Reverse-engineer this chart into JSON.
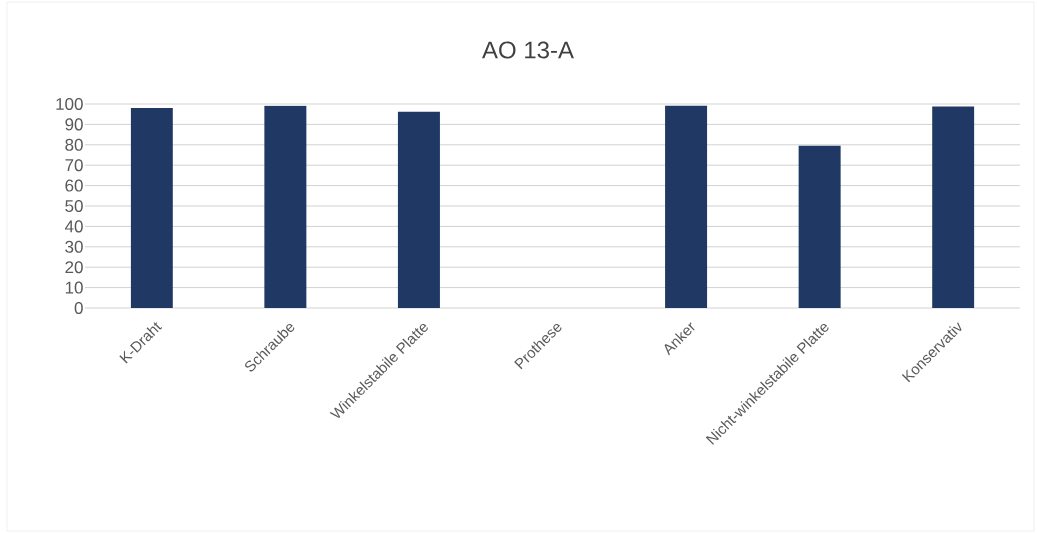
{
  "chart_data": {
    "type": "bar",
    "title": "AO 13-A",
    "categories": [
      "K-Draht",
      "Schraube",
      "Winkelstabile Platte",
      "Prothese",
      "Anker",
      "Nicht-winkelstabile Platte",
      "Konservativ"
    ],
    "values": [
      98,
      99.2,
      96.2,
      0,
      99.3,
      79.5,
      98.8
    ],
    "color": "#203864",
    "ylim": [
      0,
      100
    ],
    "yticks": [
      0,
      10,
      20,
      30,
      40,
      50,
      60,
      70,
      80,
      90,
      100
    ],
    "grid": "y"
  }
}
